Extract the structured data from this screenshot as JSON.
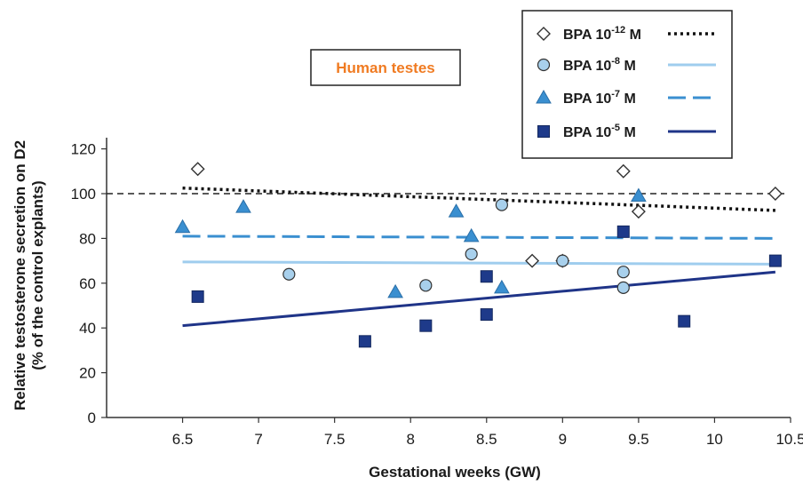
{
  "chart_data": {
    "type": "scatter",
    "annotation": "Human testes",
    "xlabel": "Gestational weeks (GW)",
    "ylabel_line1": "Relative testosterone secretion on D2",
    "ylabel_line2": "(% of the control explants)",
    "xlim": [
      6.0,
      10.5
    ],
    "ylim": [
      0,
      125
    ],
    "x_ticks": [
      "6.5",
      "7",
      "7.5",
      "8",
      "8.5",
      "9",
      "9.5",
      "10",
      "10.5"
    ],
    "x_tick_values": [
      6.5,
      7,
      7.5,
      8,
      8.5,
      9,
      9.5,
      10,
      10.5
    ],
    "y_ticks": [
      "0",
      "20",
      "40",
      "60",
      "80",
      "100",
      "120"
    ],
    "y_tick_values": [
      0,
      20,
      40,
      60,
      80,
      100,
      120
    ],
    "reference_line": 100,
    "colors": {
      "reference": "#222222",
      "annotation": "#f07b22"
    },
    "series": [
      {
        "name": "BPA 10-12 M",
        "legend_base": "BPA 10",
        "legend_exp": "-12",
        "legend_unit": " M",
        "marker": "diamond",
        "marker_fill": "#ffffff",
        "marker_stroke": "#333333",
        "line_color": "#111111",
        "line_style": "dotted",
        "points": [
          [
            6.6,
            111
          ],
          [
            9.4,
            110
          ],
          [
            9.5,
            92
          ],
          [
            10.4,
            100
          ],
          [
            8.8,
            70
          ],
          [
            9.0,
            70
          ]
        ],
        "trend": [
          [
            6.5,
            102.5
          ],
          [
            10.4,
            92.5
          ]
        ]
      },
      {
        "name": "BPA 10-8 M",
        "legend_base": "BPA 10",
        "legend_exp": "-8",
        "legend_unit": " M",
        "marker": "circle",
        "marker_fill": "#a8d0ec",
        "marker_stroke": "#333333",
        "line_color": "#9fcdee",
        "line_style": "solid",
        "points": [
          [
            7.2,
            64
          ],
          [
            8.1,
            59
          ],
          [
            8.4,
            73
          ],
          [
            8.6,
            95
          ],
          [
            9.0,
            70
          ],
          [
            9.4,
            65
          ],
          [
            9.4,
            58
          ]
        ],
        "trend": [
          [
            6.5,
            69.5
          ],
          [
            10.4,
            68.5
          ]
        ]
      },
      {
        "name": "BPA 10-7 M",
        "legend_base": "BPA 10",
        "legend_exp": "-7",
        "legend_unit": " M",
        "marker": "triangle",
        "marker_fill": "#3a8fd0",
        "marker_stroke": "#2a6fa8",
        "line_color": "#3a8fd0",
        "line_style": "dashed",
        "points": [
          [
            6.5,
            85
          ],
          [
            6.9,
            94
          ],
          [
            7.9,
            56
          ],
          [
            8.3,
            92
          ],
          [
            8.4,
            81
          ],
          [
            8.6,
            58
          ],
          [
            9.5,
            99
          ]
        ],
        "trend": [
          [
            6.5,
            81
          ],
          [
            10.4,
            80
          ]
        ]
      },
      {
        "name": "BPA 10-5 M",
        "legend_base": "BPA 10",
        "legend_exp": "-5",
        "legend_unit": " M",
        "marker": "square",
        "marker_fill": "#1e3a8a",
        "marker_stroke": "#14285f",
        "line_color": "#1f3488",
        "line_style": "solid",
        "points": [
          [
            6.6,
            54
          ],
          [
            7.7,
            34
          ],
          [
            8.1,
            41
          ],
          [
            8.5,
            63
          ],
          [
            8.5,
            46
          ],
          [
            9.4,
            83
          ],
          [
            9.8,
            43
          ],
          [
            10.4,
            70
          ]
        ],
        "trend": [
          [
            6.5,
            41
          ],
          [
            10.4,
            65
          ]
        ]
      }
    ]
  }
}
